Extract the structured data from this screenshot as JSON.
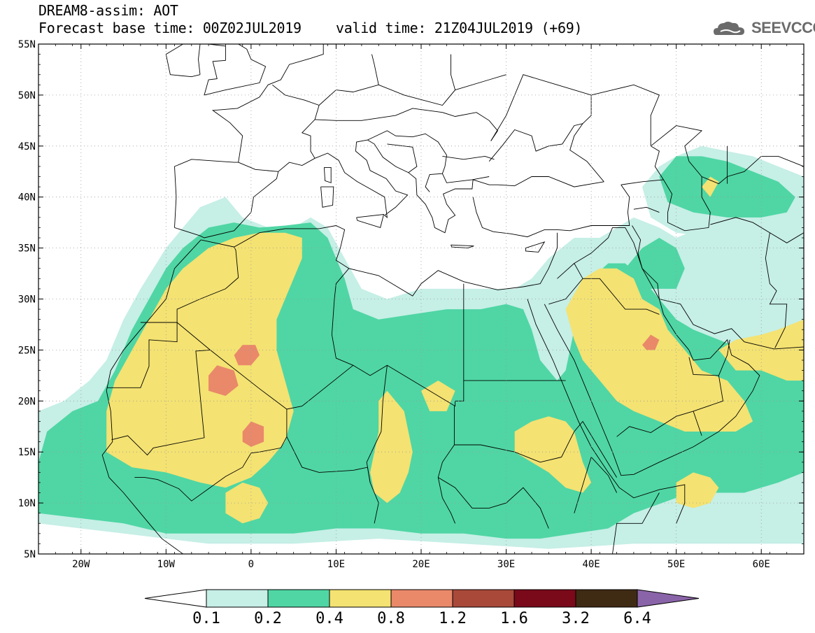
{
  "header": {
    "model_line": "DREAM8-assim: AOT",
    "base_time_line": "Forecast base time: 00Z02JUL2019",
    "valid_time_line": "valid time: 21Z04JUL2019 (+69)",
    "logo_text": "SEEVCCC",
    "logo_icon": "cloud-icon"
  },
  "map": {
    "lon_range": [
      -25,
      65
    ],
    "lat_range": [
      5,
      55
    ],
    "lon_labels": [
      "20W",
      "10W",
      "0",
      "10E",
      "20E",
      "30E",
      "40E",
      "50E",
      "60E"
    ],
    "lat_labels": [
      "55N",
      "50N",
      "45N",
      "40N",
      "35N",
      "30N",
      "25N",
      "20N",
      "15N",
      "10N",
      "5N"
    ]
  },
  "colorbar": {
    "labels": [
      "0.1",
      "0.2",
      "0.4",
      "0.8",
      "1.2",
      "1.6",
      "3.2",
      "6.4"
    ],
    "colors": [
      "#c6efe6",
      "#4fd6a4",
      "#f4e272",
      "#e9896a",
      "#a9493a",
      "#7a0a1a",
      "#3f2a14",
      "#8a64a8"
    ],
    "under_color": "#ffffff"
  },
  "colors": {
    "background": "#ffffff",
    "border": "#000000",
    "grid": "#9a9a9a"
  }
}
